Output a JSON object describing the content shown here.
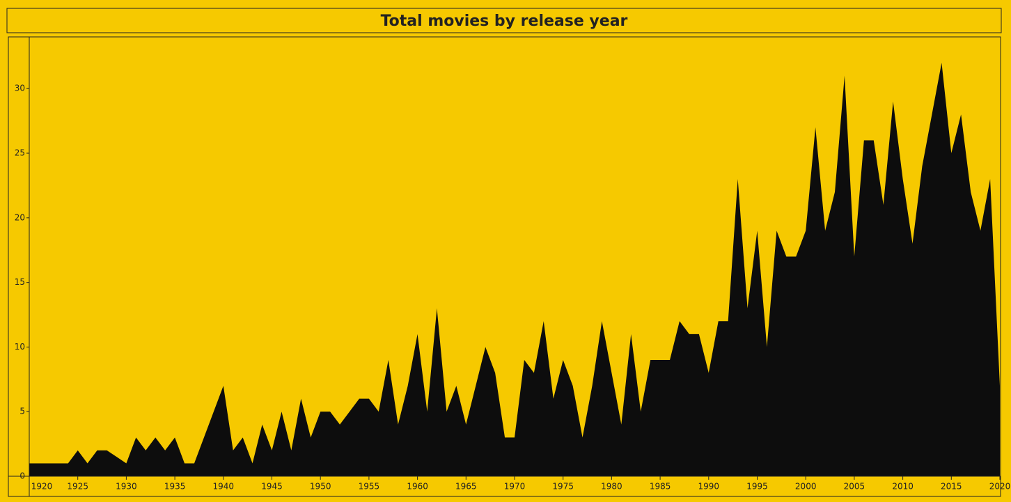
{
  "chart_data": {
    "type": "area",
    "title": "Total movies by release year",
    "x": [
      1920,
      1921,
      1922,
      1923,
      1924,
      1925,
      1926,
      1927,
      1928,
      1929,
      1930,
      1931,
      1932,
      1933,
      1934,
      1935,
      1936,
      1937,
      1938,
      1939,
      1940,
      1941,
      1942,
      1943,
      1944,
      1945,
      1946,
      1947,
      1948,
      1949,
      1950,
      1951,
      1952,
      1953,
      1954,
      1955,
      1956,
      1957,
      1958,
      1959,
      1960,
      1961,
      1962,
      1963,
      1964,
      1965,
      1966,
      1967,
      1968,
      1969,
      1970,
      1971,
      1972,
      1973,
      1974,
      1975,
      1976,
      1977,
      1978,
      1979,
      1980,
      1981,
      1982,
      1983,
      1984,
      1985,
      1986,
      1987,
      1988,
      1989,
      1990,
      1991,
      1992,
      1993,
      1994,
      1995,
      1996,
      1997,
      1998,
      1999,
      2000,
      2001,
      2002,
      2003,
      2004,
      2005,
      2006,
      2007,
      2008,
      2009,
      2010,
      2011,
      2012,
      2013,
      2014,
      2015,
      2016,
      2017,
      2018,
      2019,
      2020
    ],
    "values": [
      1,
      1,
      1,
      1,
      1,
      2,
      1,
      2,
      2,
      1.5,
      1,
      3,
      2,
      3,
      2,
      3,
      1,
      1,
      3,
      5,
      7,
      2,
      3,
      1,
      4,
      2,
      5,
      2,
      6,
      3,
      5,
      5,
      4,
      5,
      6,
      6,
      5,
      9,
      4,
      7,
      11,
      5,
      13,
      5,
      7,
      4,
      7,
      10,
      8,
      3,
      3,
      9,
      8,
      12,
      6,
      9,
      7,
      3,
      7,
      12,
      8,
      4,
      11,
      5,
      9,
      9,
      9,
      12,
      11,
      11,
      8,
      12,
      12,
      23,
      13,
      19,
      10,
      19,
      17,
      17,
      19,
      27,
      19,
      22,
      31,
      17,
      26,
      26,
      21,
      29,
      23,
      18,
      24,
      28,
      32,
      25,
      28,
      22,
      19,
      23,
      7
    ],
    "color": "#0d0d0d",
    "background": "#f6c900",
    "xlim": [
      1920,
      2020
    ],
    "xticks": [
      1920,
      1925,
      1930,
      1935,
      1940,
      1945,
      1950,
      1955,
      1960,
      1965,
      1970,
      1975,
      1980,
      1985,
      1990,
      1995,
      2000,
      2005,
      2010,
      2015,
      2020
    ],
    "ylim": [
      0,
      34
    ],
    "yticks": [
      0,
      5,
      10,
      15,
      20,
      25,
      30
    ]
  }
}
